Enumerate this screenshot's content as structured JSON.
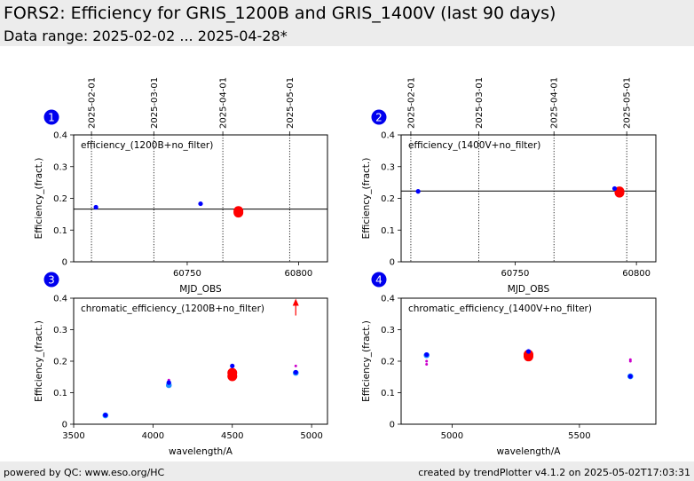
{
  "header": {
    "title": "FORS2: Efficiency for GRIS_1200B and GRIS_1400V (last 90 days)",
    "subtitle": "Data range: 2025-02-02 ... 2025-04-28*"
  },
  "footer": {
    "left": "powered by QC: www.eso.org/HC",
    "right": "created by trendPlotter v4.1.2 on 2025-05-02T17:03:31"
  },
  "colors": {
    "point": "#0000ff",
    "last_point": "#ff0000",
    "ref_point": "#1e90ff",
    "chromatic_alt": "#cc00cc",
    "badge": "#0000ee"
  },
  "chart_data": [
    {
      "panel": "1",
      "type": "scatter",
      "annotation": "efficiency_(1200B+no_filter)",
      "xlabel": "MJD_OBS",
      "ylabel": "Efficiency_(fract.)",
      "xlim": [
        60699,
        60813
      ],
      "ylim": [
        0,
        0.4
      ],
      "xticks": [
        60750,
        60800
      ],
      "yticks": [
        0,
        0.1,
        0.2,
        0.3,
        0.4
      ],
      "date_ticks": [
        {
          "x": 60707,
          "label": "2025-02-01"
        },
        {
          "x": 60735,
          "label": "2025-03-01"
        },
        {
          "x": 60766,
          "label": "2025-04-01"
        },
        {
          "x": 60796,
          "label": "2025-05-01"
        }
      ],
      "reference_line": 0.166,
      "points": [
        {
          "x": 60709,
          "y": 0.172
        },
        {
          "x": 60756,
          "y": 0.183
        }
      ],
      "last": [
        {
          "x": 60773,
          "y": 0.155
        },
        {
          "x": 60773,
          "y": 0.16
        }
      ]
    },
    {
      "panel": "2",
      "type": "scatter",
      "annotation": "efficiency_(1400V+no_filter)",
      "xlabel": "MJD_OBS",
      "ylabel": "Efficiency_(fract.)",
      "xlim": [
        60703,
        60808
      ],
      "ylim": [
        0,
        0.4
      ],
      "xticks": [
        60750,
        60800
      ],
      "yticks": [
        0,
        0.1,
        0.2,
        0.3,
        0.4
      ],
      "date_ticks": [
        {
          "x": 60707,
          "label": "2025-02-01"
        },
        {
          "x": 60735,
          "label": "2025-03-01"
        },
        {
          "x": 60766,
          "label": "2025-04-01"
        },
        {
          "x": 60796,
          "label": "2025-05-01"
        }
      ],
      "reference_line": 0.223,
      "points": [
        {
          "x": 60710,
          "y": 0.222
        },
        {
          "x": 60791,
          "y": 0.231
        }
      ],
      "last": [
        {
          "x": 60793,
          "y": 0.218
        },
        {
          "x": 60793,
          "y": 0.222
        }
      ]
    },
    {
      "panel": "3",
      "type": "scatter",
      "annotation": "chromatic_efficiency_(1200B+no_filter)",
      "xlabel": "wavelength/A",
      "ylabel": "Efficiency_(fract.)",
      "xlim": [
        3500,
        5100
      ],
      "ylim": [
        0,
        0.4
      ],
      "xticks": [
        3500,
        4000,
        4500,
        5000
      ],
      "yticks": [
        0,
        0.1,
        0.2,
        0.3,
        0.4
      ],
      "reference_points": [
        {
          "x": 3700,
          "y": 0.028
        },
        {
          "x": 4100,
          "y": 0.124
        },
        {
          "x": 4500,
          "y": 0.158
        },
        {
          "x": 4900,
          "y": 0.163
        }
      ],
      "points": [
        {
          "x": 3700,
          "y": 0.029
        },
        {
          "x": 4100,
          "y": 0.132
        },
        {
          "x": 4500,
          "y": 0.185
        },
        {
          "x": 4900,
          "y": 0.165
        }
      ],
      "alt_points": [
        {
          "x": 4100,
          "y": 0.14
        },
        {
          "x": 4900,
          "y": 0.185
        }
      ],
      "last": [
        {
          "x": 4500,
          "y": 0.152
        },
        {
          "x": 4500,
          "y": 0.163
        }
      ],
      "arrow": {
        "x": 4900,
        "y_from": 0.345,
        "y_to": 0.39
      }
    },
    {
      "panel": "4",
      "type": "scatter",
      "annotation": "chromatic_efficiency_(1400V+no_filter)",
      "xlabel": "wavelength/A",
      "ylabel": "Efficiency_(fract.)",
      "xlim": [
        4800,
        5800
      ],
      "ylim": [
        0,
        0.4
      ],
      "xticks": [
        5000,
        5500
      ],
      "yticks": [
        0,
        0.1,
        0.2,
        0.3,
        0.4
      ],
      "reference_points": [
        {
          "x": 4900,
          "y": 0.219
        },
        {
          "x": 5300,
          "y": 0.219
        },
        {
          "x": 5700,
          "y": 0.152
        }
      ],
      "points": [
        {
          "x": 4900,
          "y": 0.221
        },
        {
          "x": 5300,
          "y": 0.231
        },
        {
          "x": 5700,
          "y": 0.152
        }
      ],
      "alt_points": [
        {
          "x": 4900,
          "y": 0.2
        },
        {
          "x": 4900,
          "y": 0.19
        },
        {
          "x": 5700,
          "y": 0.2
        },
        {
          "x": 5700,
          "y": 0.205
        }
      ],
      "last": [
        {
          "x": 5300,
          "y": 0.215
        },
        {
          "x": 5300,
          "y": 0.221
        }
      ]
    }
  ]
}
